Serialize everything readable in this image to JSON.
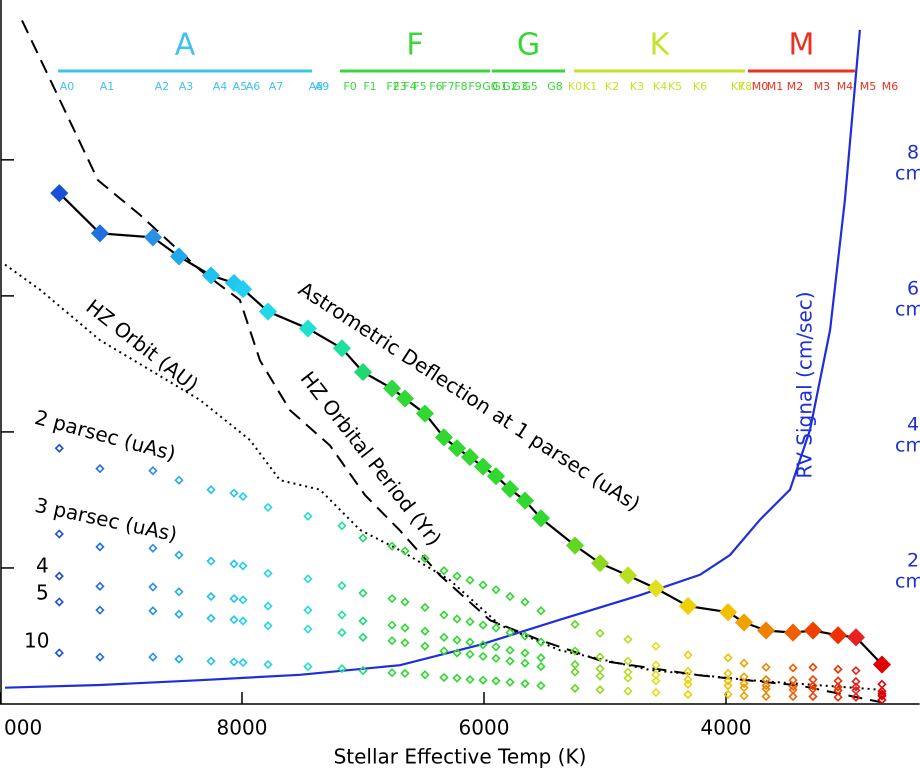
{
  "chart_data": {
    "type": "line",
    "x_label": "Stellar Effective Temp (K)",
    "xlim": [
      10000,
      2400
    ],
    "xticks": [
      {
        "value": 10000,
        "label": "000"
      },
      8000,
      6000,
      4000
    ],
    "ylim": [
      0,
      10.35
    ],
    "y2lim": [
      0,
      10.35
    ],
    "y2ticks": [
      2,
      4,
      6,
      8
    ],
    "y2_unit": "cm/sec",
    "spectral_classes": [
      {
        "name": "A",
        "color": "#3ec2ee",
        "range": [
          9520,
          7421
        ]
      },
      {
        "name": "F",
        "color": "#3cd63c",
        "range": [
          7190,
          5950
        ]
      },
      {
        "name": "G",
        "color": "#34d834",
        "range": [
          5934,
          5330
        ]
      },
      {
        "name": "K",
        "color": "#c8e22a",
        "range": [
          5256,
          3843
        ]
      },
      {
        "name": "M",
        "color": "#e8321c",
        "range": [
          3818,
          2934
        ]
      }
    ],
    "spectral_types": {
      "labels": [
        "A0",
        "A1",
        "A2",
        "A3",
        "A4",
        "A5",
        "A6",
        "A7",
        "A8",
        "A9",
        "F0",
        "F1",
        "F2",
        "F3",
        "F4",
        "F5",
        "F6",
        "F7",
        "F8",
        "F9",
        "G0",
        "G1",
        "G2",
        "G3",
        "G5",
        "G8",
        "K0",
        "K1",
        "K2",
        "K3",
        "K4",
        "K5",
        "K6",
        "K7",
        "K8",
        "M0",
        "M1",
        "M2",
        "M3",
        "M4",
        "M5",
        "M6"
      ],
      "x": [
        9446,
        9116,
        8661,
        8463,
        8182,
        8017,
        7909,
        7719,
        7388,
        7339,
        7107,
        6942,
        6752,
        6694,
        6612,
        6529,
        6397,
        6298,
        6190,
        6074,
        5950,
        5868,
        5785,
        5702,
        5620,
        5413,
        5248,
        5124,
        4942,
        4736,
        4545,
        4421,
        4215,
        3901,
        3843,
        3719,
        3595,
        3430,
        3207,
        3017,
        2826,
        2645
      ]
    },
    "x": [
      9510,
      9174,
      8736,
      8521,
      8256,
      8066,
      7992,
      7785,
      7455,
      7174,
      7000,
      6760,
      6653,
      6488,
      6331,
      6223,
      6116,
      6008,
      5901,
      5785,
      5661,
      5529,
      5248,
      5041,
      4810,
      4579,
      4314,
      3983,
      3851,
      3669,
      3446,
      3281,
      3074,
      2926,
      2711
    ],
    "marker_colors": [
      "#1a4fd8",
      "#1f6fe0",
      "#2a8fe6",
      "#22a8ea",
      "#20c0f0",
      "#20c8f0",
      "#20d0f0",
      "#20d8e8",
      "#20e0d0",
      "#20e0a0",
      "#20d870",
      "#30d840",
      "#30d830",
      "#30d830",
      "#30d830",
      "#30d830",
      "#30d830",
      "#30d830",
      "#30d830",
      "#30d830",
      "#30d830",
      "#30d830",
      "#60d820",
      "#90d820",
      "#b8e020",
      "#e0e020",
      "#f0d000",
      "#f0c000",
      "#f0a000",
      "#f08000",
      "#f06000",
      "#f04000",
      "#f03000",
      "#e82020",
      "#e00000"
    ],
    "series": [
      {
        "name": "Astrometric Deflection at 1 parsec (uAs)",
        "color": "#000000",
        "dash": "solid",
        "marker": "diamond",
        "values": [
          7.51,
          6.92,
          6.86,
          6.58,
          6.3,
          6.19,
          6.1,
          5.77,
          5.52,
          5.23,
          4.88,
          4.64,
          4.49,
          4.27,
          3.92,
          3.76,
          3.63,
          3.49,
          3.35,
          3.16,
          2.99,
          2.73,
          2.33,
          2.07,
          1.89,
          1.7,
          1.44,
          1.35,
          1.2,
          1.08,
          1.05,
          1.08,
          1.01,
          0.98,
          0.58
        ]
      },
      {
        "name": "2 parsec (uAs)",
        "marker": "open-diamond",
        "values": [
          3.76,
          3.46,
          3.43,
          3.29,
          3.15,
          3.1,
          3.05,
          2.89,
          2.76,
          2.62,
          2.44,
          2.32,
          2.25,
          2.14,
          1.96,
          1.88,
          1.82,
          1.75,
          1.68,
          1.58,
          1.5,
          1.37,
          1.17,
          1.04,
          0.95,
          0.85,
          0.72,
          0.68,
          0.6,
          0.54,
          0.53,
          0.54,
          0.51,
          0.49,
          0.29
        ]
      },
      {
        "name": "3 parsec (uAs)",
        "marker": "open-diamond",
        "values": [
          2.5,
          2.31,
          2.29,
          2.19,
          2.1,
          2.06,
          2.03,
          1.92,
          1.84,
          1.74,
          1.63,
          1.55,
          1.5,
          1.42,
          1.31,
          1.25,
          1.21,
          1.16,
          1.12,
          1.05,
          1.0,
          0.91,
          0.78,
          0.69,
          0.63,
          0.57,
          0.48,
          0.45,
          0.4,
          0.36,
          0.35,
          0.36,
          0.34,
          0.33,
          0.19
        ]
      },
      {
        "name": "4",
        "marker": "open-diamond",
        "values": [
          1.88,
          1.73,
          1.72,
          1.65,
          1.58,
          1.55,
          1.53,
          1.44,
          1.38,
          1.31,
          1.22,
          1.16,
          1.12,
          1.07,
          0.98,
          0.94,
          0.91,
          0.87,
          0.84,
          0.79,
          0.75,
          0.68,
          0.58,
          0.52,
          0.47,
          0.43,
          0.36,
          0.34,
          0.3,
          0.27,
          0.26,
          0.27,
          0.25,
          0.25,
          0.15
        ]
      },
      {
        "name": "5",
        "marker": "open-diamond",
        "values": [
          1.5,
          1.38,
          1.37,
          1.32,
          1.26,
          1.24,
          1.22,
          1.15,
          1.1,
          1.05,
          0.98,
          0.93,
          0.9,
          0.85,
          0.78,
          0.75,
          0.73,
          0.7,
          0.67,
          0.63,
          0.6,
          0.55,
          0.47,
          0.41,
          0.38,
          0.34,
          0.29,
          0.27,
          0.24,
          0.22,
          0.21,
          0.22,
          0.2,
          0.2,
          0.12
        ]
      },
      {
        "name": "10",
        "marker": "open-diamond",
        "values": [
          0.75,
          0.69,
          0.69,
          0.66,
          0.63,
          0.62,
          0.61,
          0.58,
          0.55,
          0.52,
          0.49,
          0.46,
          0.45,
          0.43,
          0.39,
          0.38,
          0.36,
          0.35,
          0.34,
          0.32,
          0.3,
          0.27,
          0.23,
          0.21,
          0.19,
          0.17,
          0.14,
          0.14,
          0.12,
          0.11,
          0.11,
          0.11,
          0.1,
          0.1,
          0.06
        ]
      },
      {
        "name": "HZ Orbit (AU)",
        "color": "#000000",
        "dash": "dotted",
        "x": [
          9959,
          9669,
          9174,
          8760,
          8347,
          7934,
          7686,
          7355,
          7025,
          6694,
          6281,
          5868,
          5372,
          4628,
          3802,
          2727
        ],
        "values": [
          6.46,
          6.09,
          5.35,
          4.91,
          4.47,
          3.88,
          3.29,
          3.15,
          2.56,
          2.26,
          1.82,
          1.16,
          0.79,
          0.5,
          0.35,
          0.21
        ]
      },
      {
        "name": "HZ Orbital Period (Yr)",
        "color": "#000000",
        "dash": "dashed",
        "x": [
          9818,
          9190,
          8843,
          8347,
          8017,
          7851,
          7603,
          7273,
          6983,
          6694,
          6364,
          5950,
          5537,
          5041,
          4215,
          3388,
          2727
        ],
        "values": [
          10.05,
          7.7,
          7.19,
          6.38,
          5.94,
          5.05,
          4.32,
          3.8,
          3.07,
          2.55,
          1.89,
          1.23,
          0.94,
          0.64,
          0.42,
          0.27,
          0.03
        ]
      },
      {
        "name": "RV Signal (cm/sec)",
        "color": "#1f2fd8",
        "dash": "solid",
        "axis": "y2",
        "x": [
          9959,
          9174,
          8347,
          7521,
          6694,
          6033,
          5372,
          4711,
          4215,
          3967,
          3719,
          3471,
          3306,
          3140,
          3017,
          2893
        ],
        "values": [
          0.24,
          0.28,
          0.35,
          0.43,
          0.57,
          0.87,
          1.24,
          1.6,
          1.9,
          2.19,
          2.71,
          3.15,
          4.03,
          5.5,
          7.41,
          9.91
        ]
      }
    ]
  }
}
